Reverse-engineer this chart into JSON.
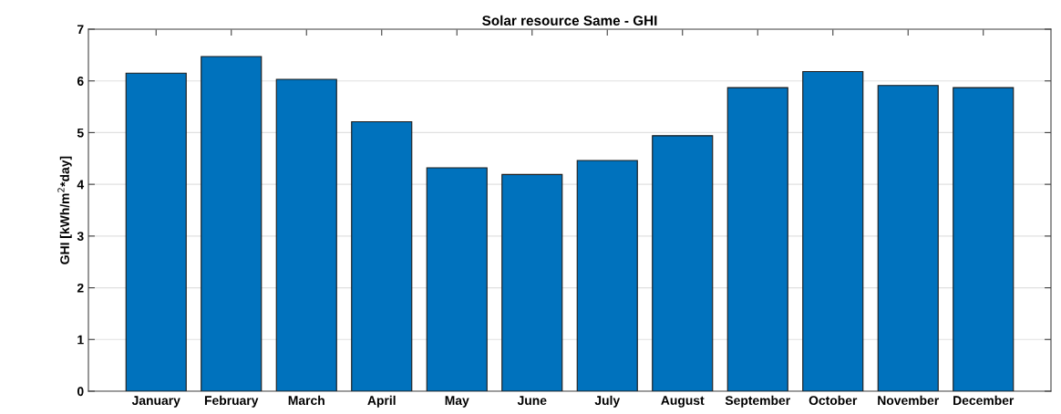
{
  "chart_data": {
    "type": "bar",
    "title": "Solar resource Same - GHI",
    "ylabel": "GHI [kWh/m$^{2}$*day]",
    "categories": [
      "January",
      "February",
      "March",
      "April",
      "May",
      "June",
      "July",
      "August",
      "September",
      "October",
      "November",
      "December"
    ],
    "values": [
      6.15,
      6.47,
      6.03,
      5.21,
      4.32,
      4.19,
      4.46,
      4.94,
      5.87,
      6.18,
      5.91,
      5.87
    ],
    "color": "#0072bd",
    "ylim": [
      0,
      7
    ],
    "yticks": [
      0,
      1,
      2,
      3,
      4,
      5,
      6,
      7
    ],
    "grid": "y"
  }
}
